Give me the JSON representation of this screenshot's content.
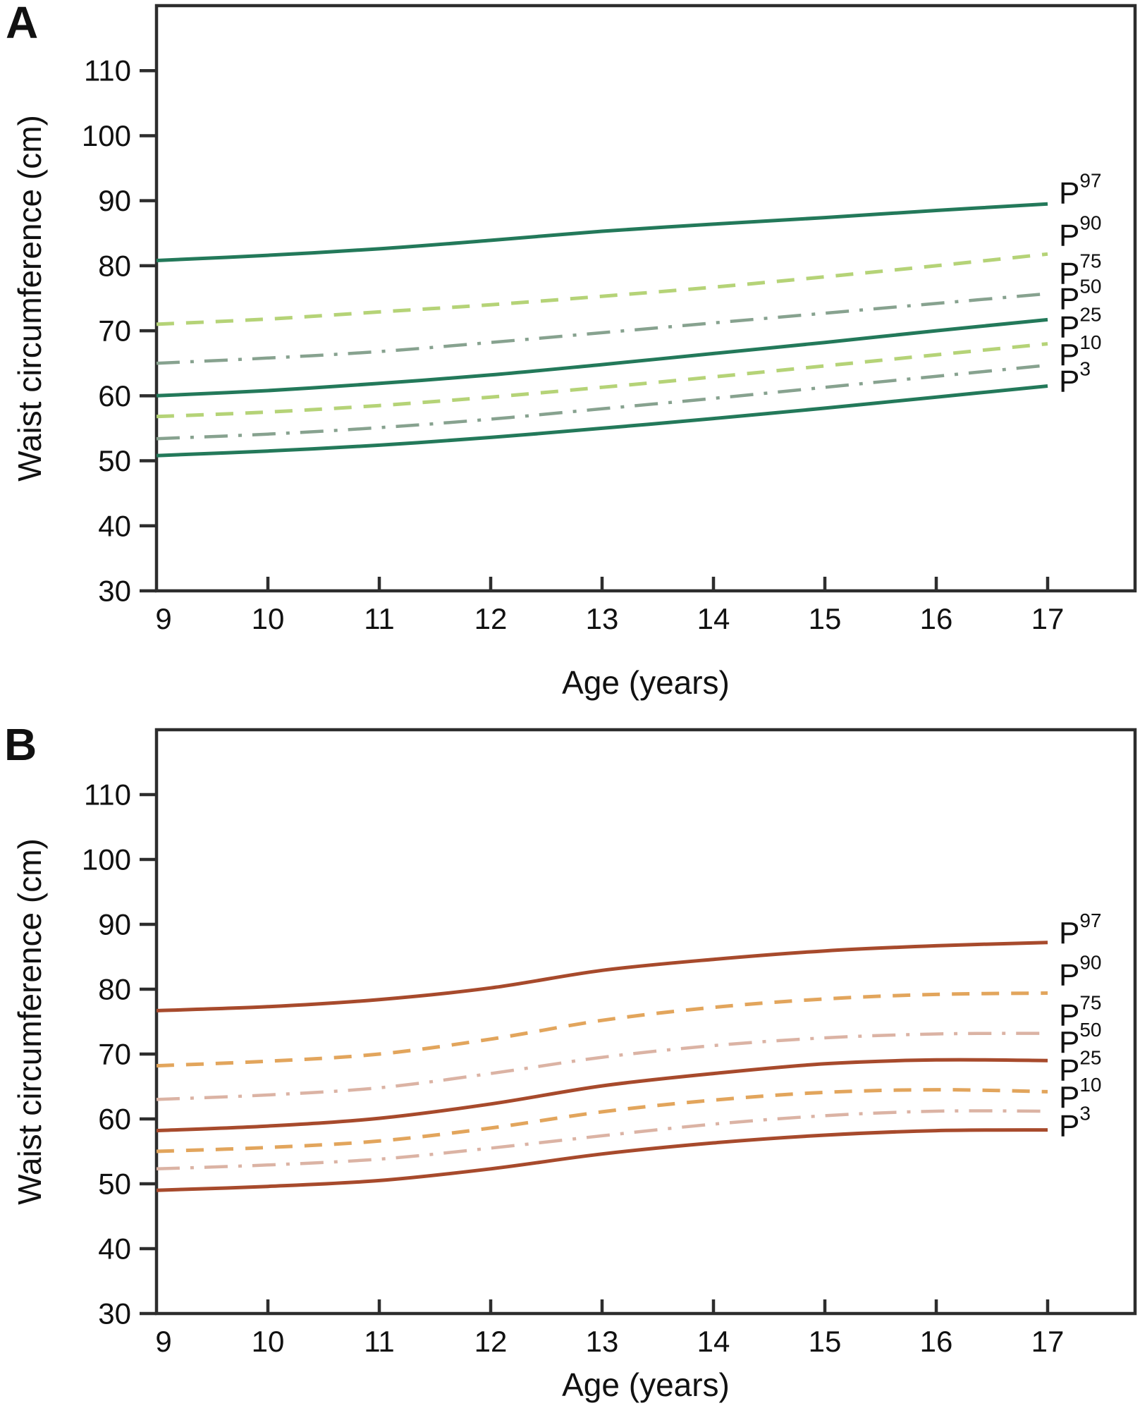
{
  "figure": {
    "background": "#ffffff",
    "axis_color": "#2d2d2d",
    "text_color": "#111111",
    "panel_a_letter": "A",
    "panel_b_letter": "B"
  },
  "chart_data": [
    {
      "type": "line",
      "panel": "A",
      "xlabel": "Age (years)",
      "ylabel": "Waist circumference (cm)",
      "x": [
        9,
        10,
        11,
        12,
        13,
        14,
        15,
        16,
        17
      ],
      "xticks": [
        9,
        10,
        11,
        12,
        13,
        14,
        15,
        16,
        17
      ],
      "yticks": [
        30,
        40,
        50,
        60,
        70,
        80,
        90,
        100,
        110
      ],
      "xlim": [
        9,
        17.78
      ],
      "ylim": [
        30,
        120
      ],
      "grid": false,
      "legend_position": "right of curve ends",
      "palette": {
        "solid": "#23795a",
        "dashed": "#b5d377",
        "dashdot": "#87a28f"
      },
      "series": [
        {
          "name": "P97",
          "label_base": "P",
          "label_sup": "97",
          "style": "solid",
          "color": "#23795a",
          "values": [
            80.8,
            81.6,
            82.6,
            83.9,
            85.3,
            86.4,
            87.4,
            88.5,
            89.5
          ]
        },
        {
          "name": "P90",
          "label_base": "P",
          "label_sup": "90",
          "style": "dashed",
          "color": "#b5d377",
          "values": [
            71.0,
            71.8,
            72.9,
            74.0,
            75.3,
            76.7,
            78.3,
            80.0,
            81.8
          ]
        },
        {
          "name": "P75",
          "label_base": "P",
          "label_sup": "75",
          "style": "dashdot",
          "color": "#87a28f",
          "values": [
            65.0,
            65.8,
            66.8,
            68.2,
            69.7,
            71.2,
            72.7,
            74.2,
            75.7
          ]
        },
        {
          "name": "P50",
          "label_base": "P",
          "label_sup": "50",
          "style": "solid",
          "color": "#23795a",
          "values": [
            60.0,
            60.8,
            61.9,
            63.2,
            64.8,
            66.5,
            68.2,
            70.0,
            71.7
          ]
        },
        {
          "name": "P25",
          "label_base": "P",
          "label_sup": "25",
          "style": "dashed",
          "color": "#b5d377",
          "values": [
            56.8,
            57.5,
            58.5,
            59.8,
            61.3,
            62.9,
            64.6,
            66.3,
            68.0
          ]
        },
        {
          "name": "P10",
          "label_base": "P",
          "label_sup": "10",
          "style": "dashdot",
          "color": "#87a28f",
          "values": [
            53.4,
            54.1,
            55.1,
            56.4,
            58.0,
            59.6,
            61.3,
            63.0,
            64.7
          ]
        },
        {
          "name": "P3",
          "label_base": "P",
          "label_sup": "3",
          "style": "solid",
          "color": "#23795a",
          "values": [
            50.8,
            51.5,
            52.4,
            53.6,
            55.0,
            56.5,
            58.1,
            59.8,
            61.5
          ]
        }
      ]
    },
    {
      "type": "line",
      "panel": "B",
      "xlabel": "Age (years)",
      "ylabel": "Waist circumference (cm)",
      "x": [
        9,
        10,
        11,
        12,
        13,
        14,
        15,
        16,
        17
      ],
      "xticks": [
        9,
        10,
        11,
        12,
        13,
        14,
        15,
        16,
        17
      ],
      "yticks": [
        30,
        40,
        50,
        60,
        70,
        80,
        90,
        100,
        110
      ],
      "xlim": [
        9,
        17.78
      ],
      "ylim": [
        30,
        120
      ],
      "grid": false,
      "legend_position": "right of curve ends",
      "palette": {
        "solid": "#a74a2c",
        "dashed": "#e2a55c",
        "dashdot": "#dbb3a4"
      },
      "series": [
        {
          "name": "P97",
          "label_base": "P",
          "label_sup": "97",
          "style": "solid",
          "color": "#a74a2c",
          "values": [
            76.7,
            77.3,
            78.4,
            80.2,
            82.9,
            84.6,
            85.9,
            86.7,
            87.2
          ]
        },
        {
          "name": "P90",
          "label_base": "P",
          "label_sup": "90",
          "style": "dashed",
          "color": "#e2a55c",
          "values": [
            68.2,
            68.9,
            70.0,
            72.3,
            75.2,
            77.2,
            78.5,
            79.2,
            79.4
          ]
        },
        {
          "name": "P75",
          "label_base": "P",
          "label_sup": "75",
          "style": "dashdot",
          "color": "#dbb3a4",
          "values": [
            63.0,
            63.7,
            64.8,
            67.0,
            69.5,
            71.3,
            72.5,
            73.1,
            73.2
          ]
        },
        {
          "name": "P50",
          "label_base": "P",
          "label_sup": "50",
          "style": "solid",
          "color": "#a74a2c",
          "values": [
            58.2,
            58.9,
            60.1,
            62.3,
            65.1,
            67.0,
            68.5,
            69.1,
            69.0
          ]
        },
        {
          "name": "P25",
          "label_base": "P",
          "label_sup": "25",
          "style": "dashed",
          "color": "#e2a55c",
          "values": [
            55.0,
            55.6,
            56.6,
            58.6,
            61.1,
            62.9,
            64.1,
            64.5,
            64.2
          ]
        },
        {
          "name": "P10",
          "label_base": "P",
          "label_sup": "10",
          "style": "dashdot",
          "color": "#dbb3a4",
          "values": [
            52.3,
            52.9,
            53.8,
            55.5,
            57.4,
            59.2,
            60.5,
            61.2,
            61.2
          ]
        },
        {
          "name": "P3",
          "label_base": "P",
          "label_sup": "3",
          "style": "solid",
          "color": "#a74a2c",
          "values": [
            49.0,
            49.6,
            50.5,
            52.3,
            54.6,
            56.3,
            57.5,
            58.2,
            58.3
          ]
        }
      ]
    }
  ]
}
